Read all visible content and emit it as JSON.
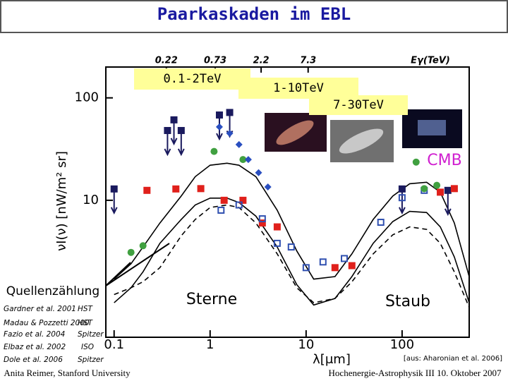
{
  "slide": {
    "title": "Paarkaskaden im EBL",
    "footer_left": "Anita Reimer, Stanford University",
    "footer_right": "Hochenergie-Astrophysik III 10. Oktober 2007",
    "source": "[aus: Aharonian et al. 2006]",
    "references": [
      {
        "authors": "Gardner et al. 2001",
        "instrument": "HST"
      },
      {
        "authors": "Madau & Pozzetti 2000",
        "instrument": "HST"
      },
      {
        "authors": "Fazio et al. 2004",
        "instrument": "Spitzer"
      },
      {
        "authors": "Elbaz et al. 2002",
        "instrument": "ISO"
      },
      {
        "authors": "Dole et al. 2006",
        "instrument": "Spitzer"
      }
    ]
  },
  "chart_data": {
    "type": "scatter",
    "xscale": "log",
    "yscale": "log",
    "x_label": "λ[μm]",
    "y_label": "νI(ν)  [nW/m² sr]",
    "x2_label": "Eγ(TeV)",
    "xlim": [
      0.082,
      500
    ],
    "ylim": [
      0.46,
      200
    ],
    "xticks": [
      0.1,
      1,
      10,
      100
    ],
    "yticks": [
      10,
      100
    ],
    "x2ticks": [
      {
        "value": 0.35,
        "label": "0.22"
      },
      {
        "value": 1.13,
        "label": "0.73"
      },
      {
        "value": 3.4,
        "label": "2.2"
      },
      {
        "value": 10.5,
        "label": "7.3"
      }
    ],
    "energy_bands": [
      "0.1-2TeV",
      "1-10TeV",
      "7-30TeV"
    ],
    "annotations": [
      "CMB",
      "Sterne",
      "Staub",
      "Quellenzählung"
    ],
    "series": [
      {
        "type": "line",
        "color": "#000000",
        "dash": false,
        "x": [
          0.1,
          0.15,
          0.2,
          0.3,
          0.5,
          0.7,
          1,
          1.5,
          2,
          3,
          5,
          8,
          12,
          20,
          30,
          50,
          80,
          120,
          180,
          250,
          350,
          500
        ],
        "values": [
          1.7,
          2.4,
          3.5,
          6,
          11,
          17,
          22,
          23,
          22,
          17,
          8,
          3.2,
          1.7,
          1.8,
          3,
          6.5,
          11,
          14.5,
          15,
          12,
          6,
          1.8
        ]
      },
      {
        "type": "line",
        "color": "#000000",
        "dash": false,
        "x": [
          0.1,
          0.15,
          0.2,
          0.3,
          0.5,
          0.7,
          1,
          1.5,
          2,
          3,
          5,
          8,
          12,
          20,
          30,
          50,
          80,
          120,
          180,
          250,
          350,
          500
        ],
        "values": [
          1.0,
          1.4,
          2,
          3.8,
          6.5,
          9,
          10.5,
          10.5,
          9.5,
          7,
          3.5,
          1.5,
          0.95,
          1.1,
          1.8,
          3.8,
          6.2,
          7.8,
          7.6,
          5.5,
          2.8,
          1.0
        ]
      },
      {
        "type": "line",
        "color": "#000000",
        "dash": true,
        "x": [
          0.1,
          0.15,
          0.2,
          0.3,
          0.5,
          0.7,
          1,
          1.5,
          2,
          3,
          5,
          8,
          12,
          20,
          30,
          50,
          80,
          120,
          180,
          250,
          350,
          500
        ],
        "values": [
          1.2,
          1.4,
          1.6,
          2.2,
          4.5,
          6.5,
          8.5,
          9,
          8.5,
          6,
          3,
          1.4,
          1.0,
          1.1,
          1.6,
          3,
          4.6,
          5.5,
          5.2,
          3.8,
          2,
          0.9
        ]
      },
      {
        "type": "scatter",
        "marker": "square",
        "upper_limit": true,
        "color": "#1a1a5e",
        "x": [
          0.1,
          0.36,
          0.42,
          0.5,
          1.25,
          1.6,
          100,
          300
        ],
        "values": [
          12.9,
          48,
          61,
          48,
          68,
          72,
          12.9,
          12.5
        ]
      },
      {
        "type": "scatter",
        "marker": "square",
        "upper_limit": false,
        "color": "#e0201b",
        "x": [
          0.22,
          0.44,
          0.8,
          1.4,
          2.2,
          3.5,
          5,
          20,
          30,
          250,
          350
        ],
        "values": [
          12.5,
          12.9,
          13,
          10,
          10,
          6,
          5.5,
          2.2,
          2.3,
          12,
          13
        ]
      },
      {
        "type": "scatter",
        "marker": "open-square",
        "upper_limit": false,
        "color": "#3050b0",
        "x": [
          1.3,
          2,
          3.5,
          5,
          7,
          10,
          15,
          25,
          60,
          100,
          170
        ],
        "values": [
          8,
          9,
          6.6,
          3.8,
          3.5,
          2.2,
          2.5,
          2.7,
          6.1,
          10.6,
          12.5
        ]
      },
      {
        "type": "scatter",
        "marker": "circle",
        "upper_limit": false,
        "color": "#40a040",
        "x": [
          0.15,
          0.2,
          1.1,
          2.2,
          140,
          170,
          230
        ],
        "values": [
          3.1,
          3.6,
          30,
          25,
          23.6,
          13,
          14
        ]
      },
      {
        "type": "scatter",
        "marker": "diamond",
        "upper_limit": false,
        "color": "#2a4fc0",
        "x": [
          1.25,
          1.6,
          2,
          2.5,
          3.2,
          4
        ],
        "values": [
          52,
          45,
          35,
          25,
          18.6,
          13.5
        ]
      }
    ]
  }
}
